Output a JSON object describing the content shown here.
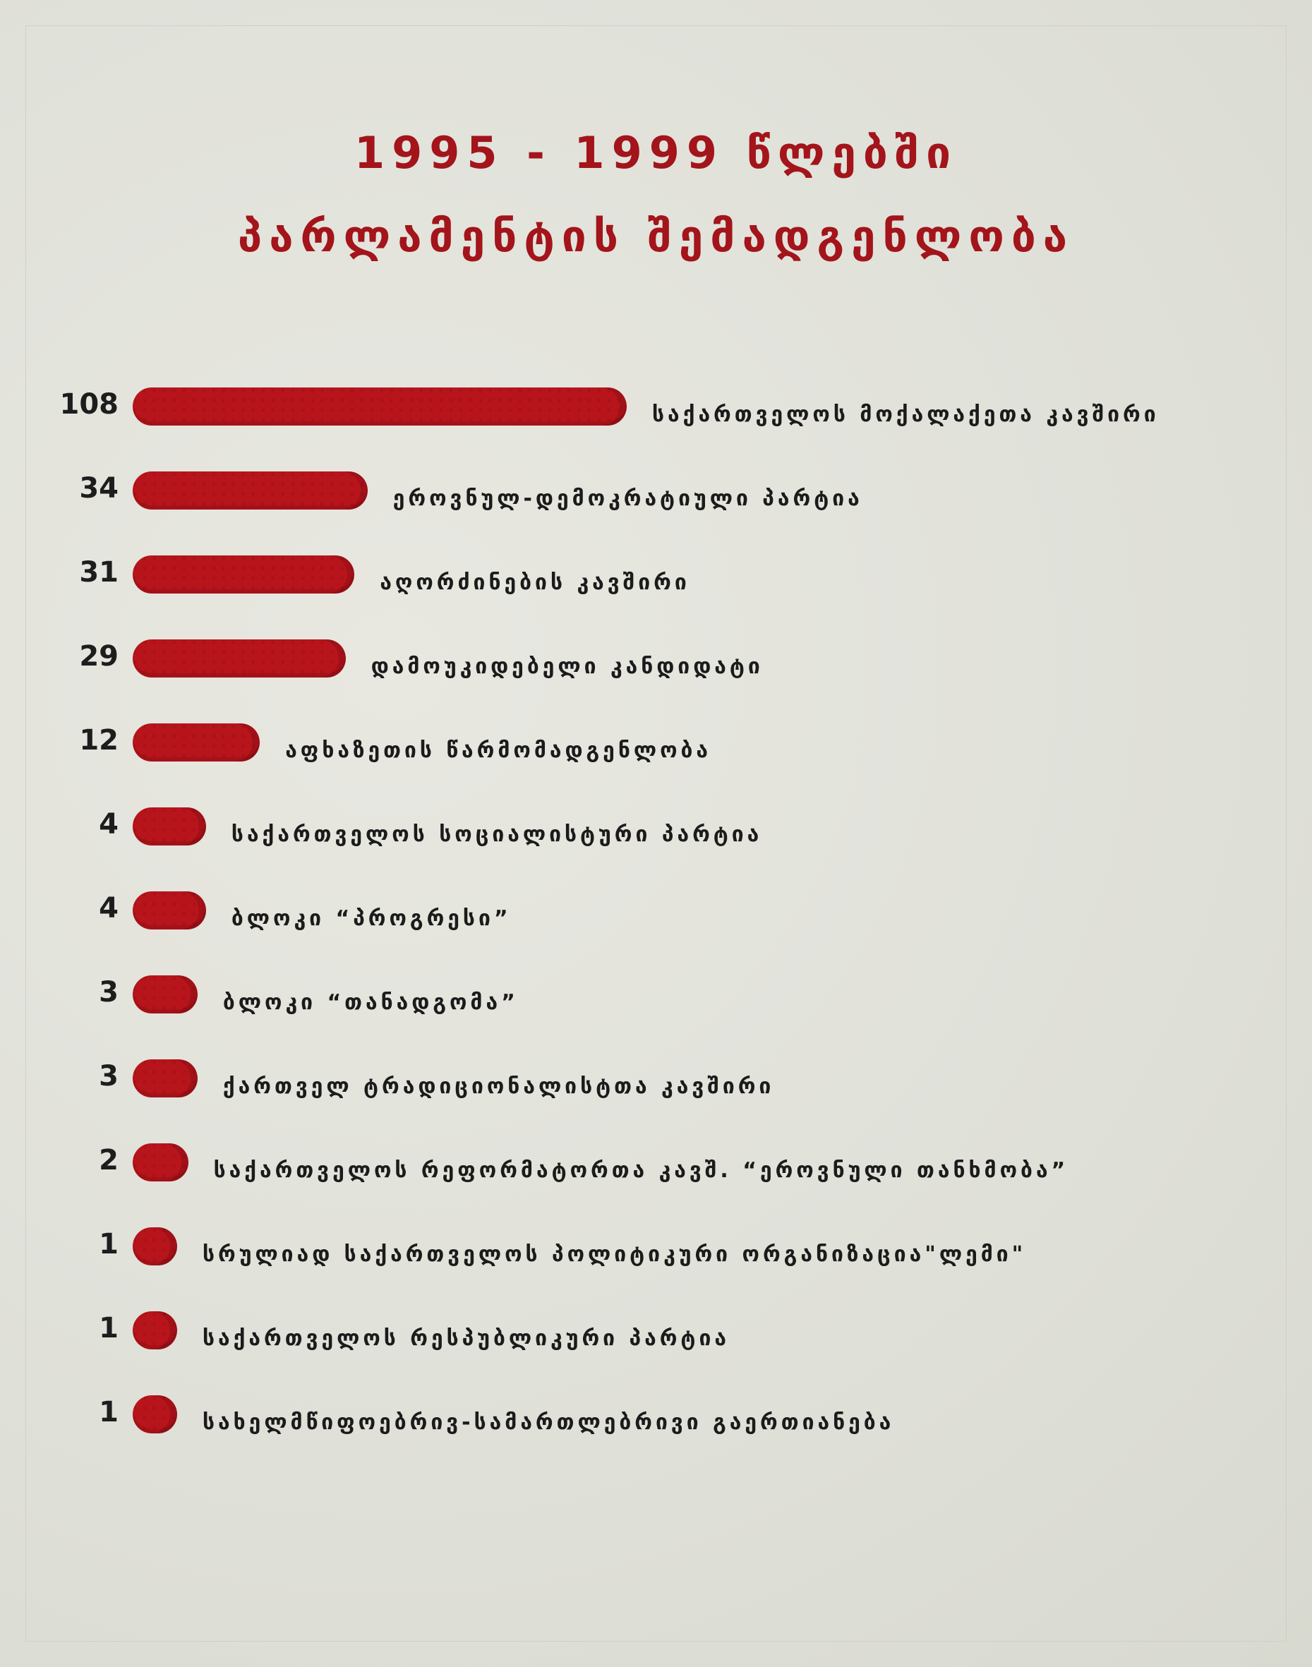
{
  "chart_data": {
    "type": "bar",
    "orientation": "horizontal",
    "title": [
      "1995 - 1999 წლებში",
      "პარლამენტის შემადგენლობა"
    ],
    "categories": [
      "საქართველოს მოქალაქეთა კავშირი",
      "ეროვნულ-დემოკრატიული პარტია",
      "აღორძინების კავშირი",
      "დამოუკიდებელი კანდიდატი",
      "აფხაზეთის წარმომადგენლობა",
      "საქართველოს სოციალისტური პარტია",
      "ბლოკი “პროგრესი”",
      "ბლოკი “თანადგომა”",
      "ქართველ ტრადიციონალისტთა კავშირი",
      "საქართველოს რეფორმატორთა კავშ. “ეროვნული თანხმობა”",
      "სრულიად საქართველოს პოლიტიკური ორგანიზაცია\"ლემი\"",
      "საქართველოს რესპუბლიკური პარტია",
      "სახელმწიფოებრივ-სამართლებრივი გაერთიანება"
    ],
    "values": [
      108,
      34,
      31,
      29,
      12,
      4,
      4,
      3,
      3,
      2,
      1,
      1,
      1
    ],
    "color": "#b8141b"
  }
}
